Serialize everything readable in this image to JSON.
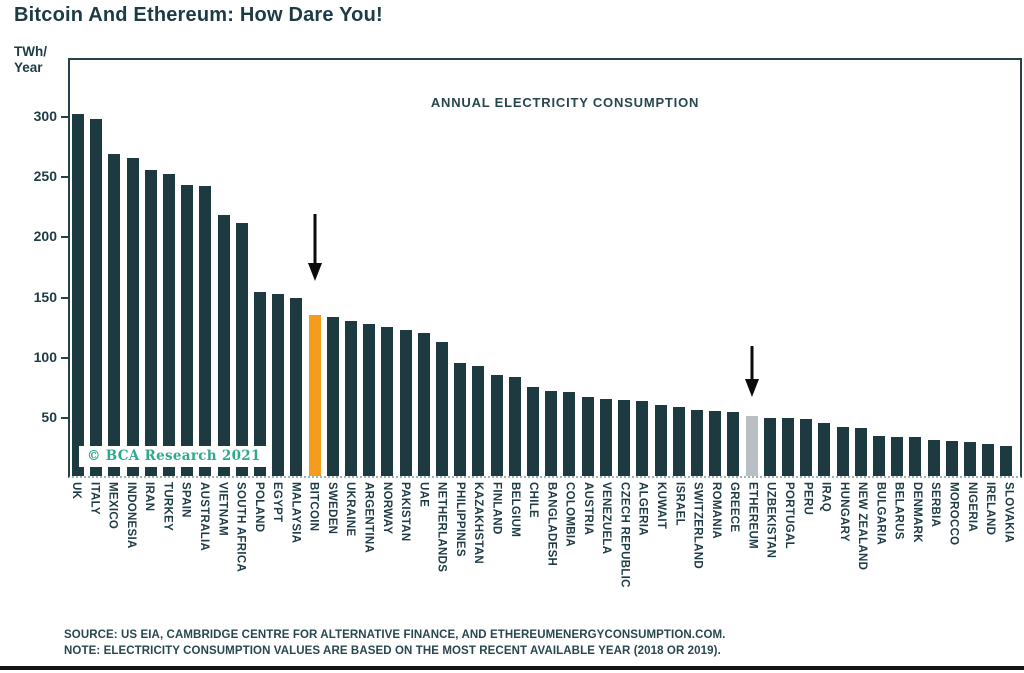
{
  "page": {
    "title": "Bitcoin And Ethereum: How Dare You!",
    "watermark": "© BCA Research 2021",
    "source_line1": "SOURCE: US EIA, CAMBRIDGE CENTRE FOR ALTERNATIVE FINANCE, AND ETHEREUMENERGYCONSUMPTION.COM.",
    "source_line2": "NOTE: ELECTRICITY CONSUMPTION VALUES ARE BASED ON THE MOST RECENT AVAILABLE YEAR (2018 OR 2019)."
  },
  "chart_data": {
    "type": "bar",
    "title": "ANNUAL ELECTRICITY CONSUMPTION",
    "ylabel": "TWh/Year",
    "ylabel_lines": [
      "TWh/",
      "Year"
    ],
    "xlabel": "",
    "yticks": [
      50,
      100,
      150,
      200,
      250,
      300
    ],
    "ylim": [
      0,
      349
    ],
    "grid": false,
    "legend": "none",
    "bar_color": "#1c3a40",
    "text_color": "#1d3b44",
    "watermark_color": "#2fa98d",
    "highlights": {
      "BITCOIN": "#f59b1e",
      "ETHEREUM": "#b9c0c3"
    },
    "categories": [
      "UK",
      "ITALY",
      "MEXICO",
      "INDONESIA",
      "IRAN",
      "TURKEY",
      "SPAIN",
      "AUSTRALIA",
      "VIETNAM",
      "SOUTH AFRICA",
      "POLAND",
      "EGYPT",
      "MALAYSIA",
      "BITCOIN",
      "SWEDEN",
      "UKRAINE",
      "ARGENTINA",
      "NORWAY",
      "PAKISTAN",
      "UAE",
      "NETHERLANDS",
      "PHILIPPINES",
      "KAZAKHSTAN",
      "FINLAND",
      "BELGIUM",
      "CHILE",
      "BANGLADESH",
      "COLOMBIA",
      "AUSTRIA",
      "VENEZUELA",
      "CZECH REPUBLIC",
      "ALGERIA",
      "KUWAIT",
      "ISRAEL",
      "SWITZERLAND",
      "ROMANIA",
      "GREECE",
      "ETHEREUM",
      "UZBEKISTAN",
      "PORTUGAL",
      "PERU",
      "IRAQ",
      "HUNGARY",
      "NEW ZEALAND",
      "BULGARIA",
      "BELARUS",
      "DENMARK",
      "SERBIA",
      "MOROCCO",
      "NIGERIA",
      "IRELAND",
      "SLOVAKIA"
    ],
    "values": [
      301,
      297,
      268,
      264,
      254,
      251,
      242,
      241,
      217,
      210,
      153,
      151,
      148,
      134,
      132,
      129,
      126,
      124,
      121,
      119,
      111,
      94,
      91,
      84,
      82,
      74,
      71,
      70,
      66,
      64,
      63,
      62,
      59,
      57,
      55,
      54,
      53,
      50,
      48,
      48,
      47,
      44,
      41,
      40,
      33,
      32,
      32,
      30,
      29,
      28,
      27,
      25
    ],
    "annotations": [
      {
        "target": "BITCOIN",
        "type": "down-arrow",
        "length": 68,
        "gap": 34
      },
      {
        "target": "ETHEREUM",
        "type": "down-arrow",
        "length": 52,
        "gap": 19
      }
    ]
  }
}
